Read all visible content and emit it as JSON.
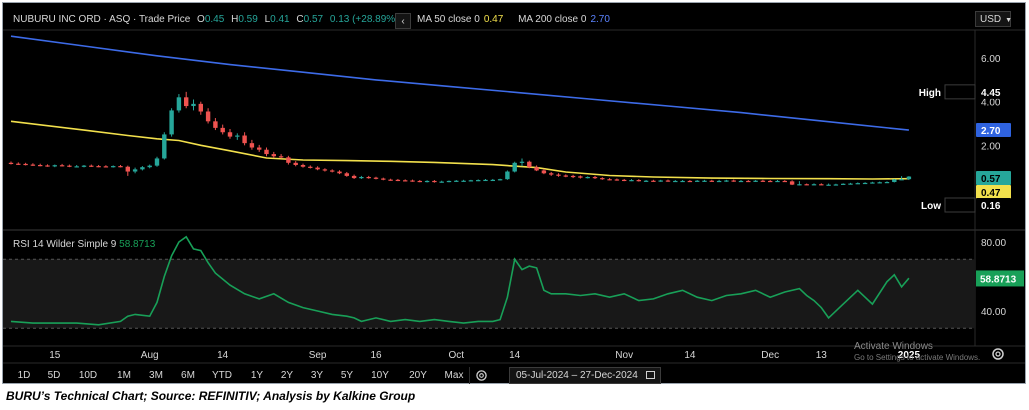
{
  "header": {
    "instrument": "NUBURU INC ORD · ASQ · Trade Price",
    "open_label": "O",
    "open": "0.45",
    "high_label": "H",
    "high": "0.59",
    "low_label": "L",
    "low": "0.41",
    "close_label": "C",
    "close": "0.57",
    "change": "0.13 (+28.89%)",
    "ma50_label": "MA 50 close 0",
    "ma50_value": "0.47",
    "ma200_label": "MA 200 close 0",
    "ma200_value": "2.70",
    "currency": "USD",
    "collapse_glyph": "‹"
  },
  "price_axis_ticks": [
    "6.00",
    "4.00",
    "2.00"
  ],
  "price_tags": {
    "high_label": "High",
    "high_value": "4.45",
    "ma200": "2.70",
    "last": "0.57",
    "ma50": "0.47",
    "low_label": "Low",
    "low_value": "0.16"
  },
  "rsi": {
    "label": "RSI 14 Wilder Simple 9",
    "value": "58.8713",
    "ticks": [
      "80.00",
      "40.00"
    ]
  },
  "x_axis_labels": [
    "15",
    "Aug",
    "14",
    "Sep",
    "16",
    "Oct",
    "14",
    "Nov",
    "14",
    "Dec",
    "13",
    "2025"
  ],
  "range_buttons": [
    "1D",
    "5D",
    "10D",
    "1M",
    "3M",
    "6M",
    "YTD",
    "1Y",
    "2Y",
    "3Y",
    "5Y",
    "10Y",
    "20Y",
    "Max"
  ],
  "date_range": {
    "start": "05-Jul-2024",
    "end": "27-Dec-2024"
  },
  "watermark": {
    "line1": "Activate Windows",
    "line2": "Go to Settings to activate Windows."
  },
  "caption": "BURU’s Technical Chart; Source: REFINITIV; Analysis by Kalkine Group",
  "colors": {
    "background": "#000000",
    "up": "#26a69a",
    "down": "#ef5350",
    "ma50": "#f2e04c",
    "ma200": "#3d6be8",
    "rsi": "#18a058"
  },
  "chart_data": [
    {
      "type": "candlestick",
      "title": "NUBURU INC ORD · ASQ · Trade Price",
      "x_range": [
        "05-Jul-2024",
        "27-Dec-2024"
      ],
      "ylim": [
        0,
        7
      ],
      "y_ticks": [
        2,
        4,
        6
      ],
      "grid": false,
      "price": {
        "x": [
          0,
          1,
          2,
          3,
          4,
          5,
          6,
          7,
          8,
          9,
          10,
          11,
          12,
          13,
          14,
          15,
          16,
          17,
          18,
          19,
          20,
          21,
          22,
          23,
          24,
          25,
          26,
          27,
          28,
          29,
          30,
          31,
          32,
          33,
          34,
          35,
          36,
          37,
          38,
          39,
          40,
          41,
          42,
          43,
          44,
          45,
          46,
          47,
          48,
          49,
          50,
          51,
          52,
          53,
          54,
          55,
          56,
          57,
          58,
          59,
          60,
          61,
          62,
          63,
          64,
          65,
          66,
          67,
          68,
          69,
          70,
          71,
          72,
          73,
          74,
          75,
          76,
          77,
          78,
          79,
          80,
          81,
          82,
          83,
          84,
          85,
          86,
          87,
          88,
          89,
          90,
          91,
          92,
          93,
          94,
          95,
          96,
          97,
          98,
          99,
          100,
          101,
          102,
          103,
          104,
          105,
          106,
          107,
          108,
          109,
          110,
          111,
          112,
          113,
          114,
          115,
          116,
          117,
          118,
          119,
          120,
          121,
          122,
          123
        ],
        "open": [
          1.2,
          1.16,
          1.15,
          1.12,
          1.1,
          1.08,
          1.06,
          1.09,
          1.07,
          1.04,
          1.04,
          1.07,
          1.05,
          1.04,
          1.03,
          1.05,
          1.02,
          0.8,
          0.9,
          1.0,
          1.07,
          1.4,
          2.5,
          3.6,
          4.2,
          3.8,
          3.9,
          3.55,
          3.1,
          2.8,
          2.6,
          2.4,
          2.45,
          2.1,
          1.9,
          1.8,
          1.6,
          1.5,
          1.45,
          1.2,
          1.1,
          1.02,
          0.98,
          0.9,
          0.85,
          0.8,
          0.72,
          0.6,
          0.5,
          0.55,
          0.52,
          0.48,
          0.43,
          0.42,
          0.4,
          0.39,
          0.37,
          0.35,
          0.37,
          0.33,
          0.34,
          0.37,
          0.38,
          0.38,
          0.4,
          0.41,
          0.42,
          0.42,
          0.45,
          0.8,
          1.2,
          1.25,
          1.0,
          0.85,
          0.72,
          0.66,
          0.62,
          0.6,
          0.58,
          0.52,
          0.55,
          0.5,
          0.45,
          0.44,
          0.42,
          0.4,
          0.41,
          0.37,
          0.38,
          0.37,
          0.39,
          0.36,
          0.37,
          0.37,
          0.36,
          0.38,
          0.38,
          0.37,
          0.37,
          0.39,
          0.36,
          0.37,
          0.36,
          0.38,
          0.37,
          0.36,
          0.37,
          0.35,
          0.2,
          0.22,
          0.21,
          0.22,
          0.2,
          0.2,
          0.21,
          0.24,
          0.25,
          0.27,
          0.28,
          0.3,
          0.31,
          0.32,
          0.44,
          0.45
        ],
        "high": [
          1.26,
          1.22,
          1.2,
          1.18,
          1.16,
          1.13,
          1.12,
          1.15,
          1.12,
          1.1,
          1.1,
          1.12,
          1.1,
          1.09,
          1.08,
          1.1,
          1.07,
          0.98,
          1.05,
          1.12,
          1.48,
          2.6,
          3.7,
          4.35,
          4.45,
          4.1,
          4.0,
          3.7,
          3.25,
          2.95,
          2.75,
          2.55,
          2.6,
          2.25,
          2.02,
          1.9,
          1.7,
          1.6,
          1.52,
          1.28,
          1.16,
          1.08,
          1.04,
          0.95,
          0.9,
          0.86,
          0.78,
          0.66,
          0.6,
          0.6,
          0.56,
          0.52,
          0.47,
          0.46,
          0.44,
          0.43,
          0.41,
          0.4,
          0.41,
          0.38,
          0.39,
          0.41,
          0.42,
          0.42,
          0.44,
          0.46,
          0.46,
          0.47,
          0.85,
          1.25,
          1.4,
          1.3,
          1.08,
          0.92,
          0.78,
          0.72,
          0.67,
          0.65,
          0.62,
          0.58,
          0.6,
          0.54,
          0.5,
          0.48,
          0.46,
          0.45,
          0.45,
          0.41,
          0.42,
          0.42,
          0.43,
          0.41,
          0.41,
          0.41,
          0.41,
          0.42,
          0.42,
          0.42,
          0.42,
          0.43,
          0.41,
          0.41,
          0.41,
          0.42,
          0.41,
          0.41,
          0.41,
          0.4,
          0.36,
          0.25,
          0.26,
          0.26,
          0.25,
          0.24,
          0.26,
          0.28,
          0.3,
          0.31,
          0.33,
          0.34,
          0.35,
          0.46,
          0.59,
          0.59
        ],
        "low": [
          1.12,
          1.1,
          1.08,
          1.06,
          1.04,
          1.02,
          1.0,
          1.03,
          1.0,
          0.99,
          0.99,
          1.01,
          1.0,
          0.99,
          0.98,
          0.99,
          0.6,
          0.72,
          0.85,
          0.95,
          1.02,
          1.35,
          2.4,
          3.5,
          3.7,
          3.6,
          3.4,
          3.0,
          2.7,
          2.5,
          2.3,
          2.25,
          2.0,
          1.8,
          1.7,
          1.5,
          1.42,
          1.4,
          1.12,
          1.04,
          0.98,
          0.94,
          0.86,
          0.8,
          0.76,
          0.68,
          0.56,
          0.46,
          0.46,
          0.47,
          0.44,
          0.4,
          0.38,
          0.36,
          0.35,
          0.33,
          0.31,
          0.3,
          0.29,
          0.29,
          0.31,
          0.33,
          0.34,
          0.35,
          0.36,
          0.37,
          0.38,
          0.39,
          0.42,
          0.76,
          1.05,
          0.95,
          0.82,
          0.68,
          0.6,
          0.56,
          0.54,
          0.5,
          0.48,
          0.48,
          0.46,
          0.42,
          0.4,
          0.38,
          0.36,
          0.36,
          0.34,
          0.33,
          0.34,
          0.33,
          0.33,
          0.32,
          0.33,
          0.32,
          0.33,
          0.33,
          0.33,
          0.33,
          0.33,
          0.33,
          0.32,
          0.32,
          0.32,
          0.33,
          0.32,
          0.32,
          0.32,
          0.18,
          0.16,
          0.18,
          0.18,
          0.18,
          0.17,
          0.17,
          0.19,
          0.22,
          0.23,
          0.25,
          0.26,
          0.27,
          0.29,
          0.3,
          0.41,
          0.41
        ],
        "close": [
          1.16,
          1.15,
          1.12,
          1.1,
          1.08,
          1.06,
          1.09,
          1.07,
          1.04,
          1.04,
          1.07,
          1.05,
          1.04,
          1.03,
          1.05,
          1.02,
          0.8,
          0.9,
          1.0,
          1.07,
          1.4,
          2.5,
          3.6,
          4.2,
          3.8,
          3.9,
          3.55,
          3.1,
          2.8,
          2.6,
          2.4,
          2.45,
          2.1,
          1.9,
          1.8,
          1.6,
          1.5,
          1.45,
          1.2,
          1.1,
          1.02,
          0.98,
          0.9,
          0.85,
          0.8,
          0.72,
          0.6,
          0.5,
          0.55,
          0.52,
          0.48,
          0.43,
          0.42,
          0.4,
          0.39,
          0.37,
          0.35,
          0.37,
          0.33,
          0.34,
          0.37,
          0.38,
          0.38,
          0.4,
          0.41,
          0.42,
          0.42,
          0.45,
          0.8,
          1.2,
          1.25,
          1.0,
          0.85,
          0.72,
          0.66,
          0.62,
          0.6,
          0.58,
          0.52,
          0.55,
          0.5,
          0.45,
          0.44,
          0.42,
          0.4,
          0.41,
          0.37,
          0.38,
          0.37,
          0.39,
          0.36,
          0.37,
          0.37,
          0.36,
          0.38,
          0.38,
          0.37,
          0.37,
          0.39,
          0.36,
          0.37,
          0.36,
          0.38,
          0.37,
          0.36,
          0.37,
          0.35,
          0.2,
          0.22,
          0.21,
          0.22,
          0.2,
          0.2,
          0.21,
          0.24,
          0.25,
          0.27,
          0.28,
          0.3,
          0.31,
          0.32,
          0.44,
          0.45,
          0.57
        ]
      },
      "series": [
        {
          "name": "MA 50 close 0",
          "x": [
            0,
            10,
            16,
            20,
            23,
            26,
            30,
            35,
            40,
            46,
            52,
            58,
            66,
            72,
            76,
            82,
            88,
            96,
            104,
            112,
            118,
            123
          ],
          "values": [
            3.1,
            2.7,
            2.45,
            2.3,
            2.22,
            2.0,
            1.75,
            1.42,
            1.33,
            1.3,
            1.27,
            1.22,
            1.12,
            0.98,
            0.78,
            0.62,
            0.55,
            0.5,
            0.48,
            0.47,
            0.46,
            0.47
          ]
        },
        {
          "name": "MA 200 close 0",
          "x": [
            0,
            10,
            20,
            30,
            40,
            50,
            60,
            70,
            80,
            90,
            100,
            110,
            123
          ],
          "values": [
            7.0,
            6.55,
            6.1,
            5.7,
            5.35,
            5.0,
            4.7,
            4.4,
            4.1,
            3.8,
            3.5,
            3.15,
            2.7
          ]
        }
      ]
    },
    {
      "type": "line",
      "title": "RSI 14 Wilder Simple 9",
      "ylim": [
        24,
        90
      ],
      "y_ticks": [
        40,
        80
      ],
      "series": [
        {
          "name": "RSI 14 Wilder Simple 9",
          "x": [
            0,
            3,
            6,
            9,
            12,
            15,
            16,
            17,
            19,
            20,
            21,
            22,
            23,
            24,
            25,
            26,
            27,
            28,
            30,
            32,
            34,
            36,
            38,
            40,
            42,
            44,
            46,
            47,
            48,
            50,
            52,
            54,
            56,
            58,
            60,
            62,
            64,
            66,
            67,
            68,
            69,
            70,
            71,
            72,
            73,
            74,
            76,
            78,
            80,
            82,
            84,
            86,
            88,
            90,
            92,
            94,
            96,
            98,
            100,
            102,
            104,
            106,
            108,
            109,
            110,
            111,
            112,
            114,
            116,
            118,
            120,
            121,
            122,
            123
          ],
          "values": [
            34,
            33,
            33,
            33,
            32,
            34,
            37,
            38,
            37,
            45,
            60,
            72,
            80,
            83,
            76,
            75,
            68,
            62,
            55,
            50,
            47,
            50,
            45,
            42,
            40,
            38,
            37,
            36,
            34,
            36,
            34,
            35,
            34,
            35,
            34,
            33,
            34,
            34,
            35,
            48,
            70,
            64,
            66,
            65,
            52,
            50,
            50,
            49,
            50,
            48,
            50,
            46,
            47,
            50,
            52,
            48,
            46,
            49,
            50,
            52,
            48,
            51,
            53,
            49,
            46,
            42,
            36,
            44,
            52,
            44,
            57,
            61,
            54,
            59
          ]
        }
      ]
    }
  ]
}
